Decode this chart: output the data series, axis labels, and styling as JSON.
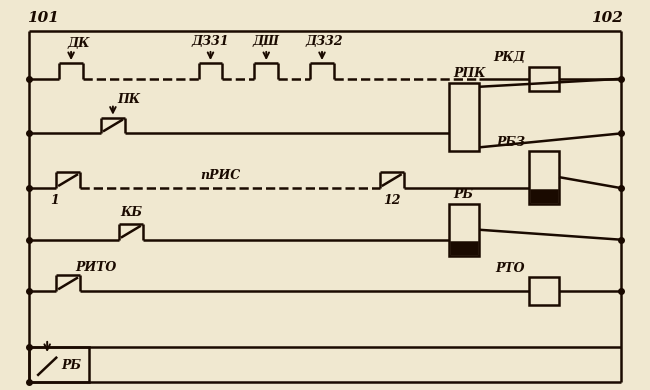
{
  "bg_color": "#f0e8d0",
  "line_color": "#1a0a00",
  "lw": 1.8,
  "labels": {
    "DK": "ДК",
    "D31": "ДЗ31",
    "DSH": "ДШ",
    "D32": "ДЗ32",
    "RKD": "РКД",
    "PK": "ПК",
    "RPK": "РПК",
    "one": "1",
    "PRIS": "пРИС",
    "twelve": "12",
    "RBZ": "РБЗ",
    "KB": "КБ",
    "RB": "РБ",
    "RITO": "РИТО",
    "RTO": "РТО",
    "n101": "101",
    "n102": "102"
  }
}
